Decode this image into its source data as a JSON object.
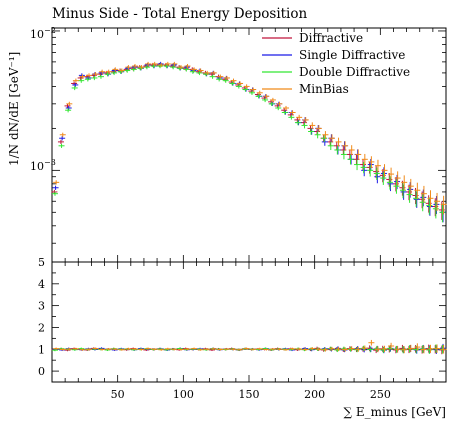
{
  "chart_data": {
    "type": "scatter",
    "title": "Minus Side - Total Energy Deposition",
    "xlabel": "∑ E_minus [GeV]",
    "ylabel": "1/N dN/dE [GeV⁻¹]",
    "log_y": true,
    "xlim": [
      0,
      300
    ],
    "ylim": [
      0.00022,
      0.0105
    ],
    "ratio_ylim": [
      -0.5,
      5
    ],
    "x_ticks": [
      "50",
      "100",
      "150",
      "200",
      "250"
    ],
    "y_ticks_main": [
      "10",
      "10"
    ],
    "y_ticks_main_exp": [
      "−2",
      "−3"
    ],
    "y_ticks_ratio": [
      "5",
      "4",
      "3",
      "2",
      "1",
      "0"
    ],
    "legend_position": "top-right",
    "legend": [
      "Diffractive",
      "Single Diffractive",
      "Double Diffractive",
      "MinBias"
    ],
    "colors": {
      "Diffractive": "#c0143c",
      "Single Diffractive": "#1a1ae6",
      "Double Diffractive": "#33e633",
      "MinBias": "#f08a19"
    },
    "x": [
      2.5,
      7.5,
      12.5,
      17.5,
      22.5,
      27.5,
      32.5,
      37.5,
      42.5,
      47.5,
      52.5,
      57.5,
      62.5,
      67.5,
      72.5,
      77.5,
      82.5,
      87.5,
      92.5,
      97.5,
      102.5,
      107.5,
      112.5,
      117.5,
      122.5,
      127.5,
      132.5,
      137.5,
      142.5,
      147.5,
      152.5,
      157.5,
      162.5,
      167.5,
      172.5,
      177.5,
      182.5,
      187.5,
      192.5,
      197.5,
      202.5,
      207.5,
      212.5,
      217.5,
      222.5,
      227.5,
      232.5,
      237.5,
      242.5,
      247.5,
      252.5,
      257.5,
      262.5,
      267.5,
      272.5,
      277.5,
      282.5,
      287.5,
      292.5,
      297.5
    ],
    "series": [
      {
        "name": "Diffractive",
        "values": [
          0.0007,
          0.0016,
          0.0029,
          0.0042,
          0.0046,
          0.0047,
          0.0048,
          0.0049,
          0.005,
          0.0051,
          0.0052,
          0.0053,
          0.0054,
          0.0055,
          0.0056,
          0.0057,
          0.0057,
          0.0057,
          0.0056,
          0.0055,
          0.0054,
          0.0053,
          0.0051,
          0.005,
          0.0049,
          0.0047,
          0.0045,
          0.0043,
          0.0041,
          0.0039,
          0.0037,
          0.0035,
          0.0033,
          0.0031,
          0.0029,
          0.0027,
          0.0025,
          0.0023,
          0.0022,
          0.002,
          0.0019,
          0.0017,
          0.0016,
          0.0015,
          0.0014,
          0.0013,
          0.0012,
          0.0011,
          0.00105,
          0.00098,
          0.00092,
          0.00086,
          0.0008,
          0.00075,
          0.0007,
          0.00066,
          0.00062,
          0.00058,
          0.00055,
          0.00052
        ],
        "ratio": [
          0.98,
          1.02,
          0.96,
          1.03,
          1.0,
          0.97,
          1.04,
          1.01,
          0.99,
          1.02,
          1.0,
          0.98,
          1.03,
          1.01,
          0.97,
          1.0,
          1.02,
          0.99,
          1.01,
          0.98,
          1.03,
          1.0,
          0.99,
          1.02,
          0.97,
          1.01,
          1.0,
          1.03,
          0.98,
          1.02,
          0.99,
          1.01,
          1.0,
          0.97,
          1.03,
          1.0,
          1.02,
          0.98,
          1.01,
          0.99,
          1.04,
          0.97,
          1.02,
          1.0,
          0.98,
          1.03,
          0.99,
          1.01,
          1.05,
          0.96,
          1.02,
          1.0,
          0.97,
          1.04,
          0.99,
          1.02,
          0.98,
          1.03,
          1.0,
          0.97
        ]
      },
      {
        "name": "Single Diffractive",
        "values": [
          0.00075,
          0.0017,
          0.0028,
          0.0041,
          0.0048,
          0.0046,
          0.0049,
          0.005,
          0.0049,
          0.0052,
          0.0051,
          0.0054,
          0.0055,
          0.0054,
          0.0057,
          0.0056,
          0.0058,
          0.0056,
          0.0057,
          0.0054,
          0.0055,
          0.0052,
          0.0052,
          0.0049,
          0.005,
          0.0046,
          0.0046,
          0.0042,
          0.0042,
          0.0038,
          0.0038,
          0.0034,
          0.0034,
          0.003,
          0.003,
          0.0026,
          0.0026,
          0.0022,
          0.0023,
          0.0019,
          0.002,
          0.0016,
          0.0017,
          0.0014,
          0.0015,
          0.0012,
          0.0013,
          0.001,
          0.0011,
          0.0009,
          0.00095,
          0.0008,
          0.00083,
          0.0007,
          0.00073,
          0.00062,
          0.00064,
          0.00055,
          0.00057,
          0.0005
        ],
        "ratio": [
          1.01,
          0.97,
          1.03,
          1.0,
          0.98,
          1.02,
          0.99,
          1.04,
          1.0,
          0.97,
          1.02,
          1.01,
          0.98,
          1.03,
          1.0,
          0.99,
          1.02,
          0.97,
          1.01,
          1.03,
          0.98,
          1.0,
          1.02,
          0.99,
          1.03,
          0.98,
          1.01,
          1.0,
          0.97,
          1.02,
          1.01,
          0.98,
          1.03,
          1.0,
          0.99,
          1.02,
          0.97,
          1.01,
          1.03,
          0.98,
          1.0,
          1.02,
          0.99,
          1.04,
          0.97,
          1.01,
          1.03,
          0.98,
          1.0,
          1.02,
          0.96,
          1.04,
          1.0,
          0.98,
          1.03,
          0.97,
          1.02,
          1.0,
          0.98,
          1.05
        ]
      },
      {
        "name": "Double Diffractive",
        "values": [
          0.00068,
          0.0015,
          0.0027,
          0.0039,
          0.0044,
          0.0045,
          0.0046,
          0.0047,
          0.0049,
          0.005,
          0.0051,
          0.0052,
          0.0053,
          0.0054,
          0.0055,
          0.0056,
          0.0056,
          0.0056,
          0.0055,
          0.0054,
          0.0053,
          0.0051,
          0.005,
          0.0049,
          0.0047,
          0.0045,
          0.0044,
          0.0042,
          0.004,
          0.0038,
          0.0036,
          0.0034,
          0.0032,
          0.003,
          0.0028,
          0.0026,
          0.0024,
          0.0022,
          0.0021,
          0.0019,
          0.0018,
          0.0017,
          0.0015,
          0.0014,
          0.0013,
          0.0012,
          0.0011,
          0.00105,
          0.001,
          0.00095,
          0.00088,
          0.00082,
          0.00077,
          0.00072,
          0.00067,
          0.00063,
          0.00059,
          0.00056,
          0.00053,
          0.0005
        ],
        "ratio": [
          0.96,
          1.02,
          1.0,
          0.98,
          1.03,
          0.99,
          1.01,
          1.0,
          0.97,
          1.02,
          1.0,
          1.01,
          0.98,
          1.0,
          1.02,
          0.99,
          1.01,
          0.98,
          1.0,
          1.03,
          0.99,
          1.01,
          1.0,
          0.98,
          1.02,
          1.0,
          0.99,
          1.01,
          0.98,
          1.02,
          1.0,
          0.99,
          1.03,
          0.98,
          1.01,
          1.0,
          0.99,
          1.02,
          0.98,
          1.01,
          1.0,
          0.99,
          1.03,
          0.97,
          1.02,
          1.0,
          0.98,
          1.04,
          0.99,
          1.02,
          0.97,
          1.03,
          1.0,
          0.98,
          1.02,
          0.99,
          1.01,
          0.97,
          1.03,
          1.0
        ]
      },
      {
        "name": "MinBias",
        "values": [
          0.00082,
          0.0018,
          0.003,
          0.0044,
          0.0047,
          0.0048,
          0.0049,
          0.0051,
          0.0051,
          0.0053,
          0.0052,
          0.0055,
          0.0056,
          0.0055,
          0.0058,
          0.0058,
          0.0057,
          0.0058,
          0.0058,
          0.0055,
          0.0056,
          0.0053,
          0.0052,
          0.005,
          0.005,
          0.0047,
          0.0046,
          0.0044,
          0.0042,
          0.004,
          0.0038,
          0.0036,
          0.0034,
          0.0032,
          0.003,
          0.0028,
          0.0026,
          0.0024,
          0.0023,
          0.0021,
          0.002,
          0.0018,
          0.0017,
          0.0016,
          0.0015,
          0.0014,
          0.0013,
          0.0012,
          0.00115,
          0.00108,
          0.001,
          0.00094,
          0.00088,
          0.00082,
          0.00077,
          0.00072,
          0.00068,
          0.00063,
          0.0006,
          0.00057
        ],
        "ratio": [
          1.03,
          0.99,
          1.01,
          1.02,
          0.98,
          1.0,
          1.03,
          0.99,
          1.01,
          1.0,
          0.98,
          1.02,
          1.01,
          0.99,
          1.03,
          1.0,
          0.98,
          1.02,
          1.0,
          0.99,
          1.01,
          1.03,
          0.98,
          1.0,
          1.02,
          0.99,
          1.01,
          1.0,
          0.98,
          1.03,
          1.0,
          1.02,
          0.99,
          1.01,
          1.0,
          0.98,
          1.02,
          1.01,
          0.99,
          1.03,
          1.0,
          0.98,
          1.02,
          1.01,
          0.99,
          1.03,
          1.0,
          1.05,
          1.3,
          1.0,
          1.02,
          1.15,
          1.0,
          0.98,
          1.04,
          1.1,
          0.99,
          1.02,
          1.03,
          1.0
        ]
      }
    ]
  }
}
